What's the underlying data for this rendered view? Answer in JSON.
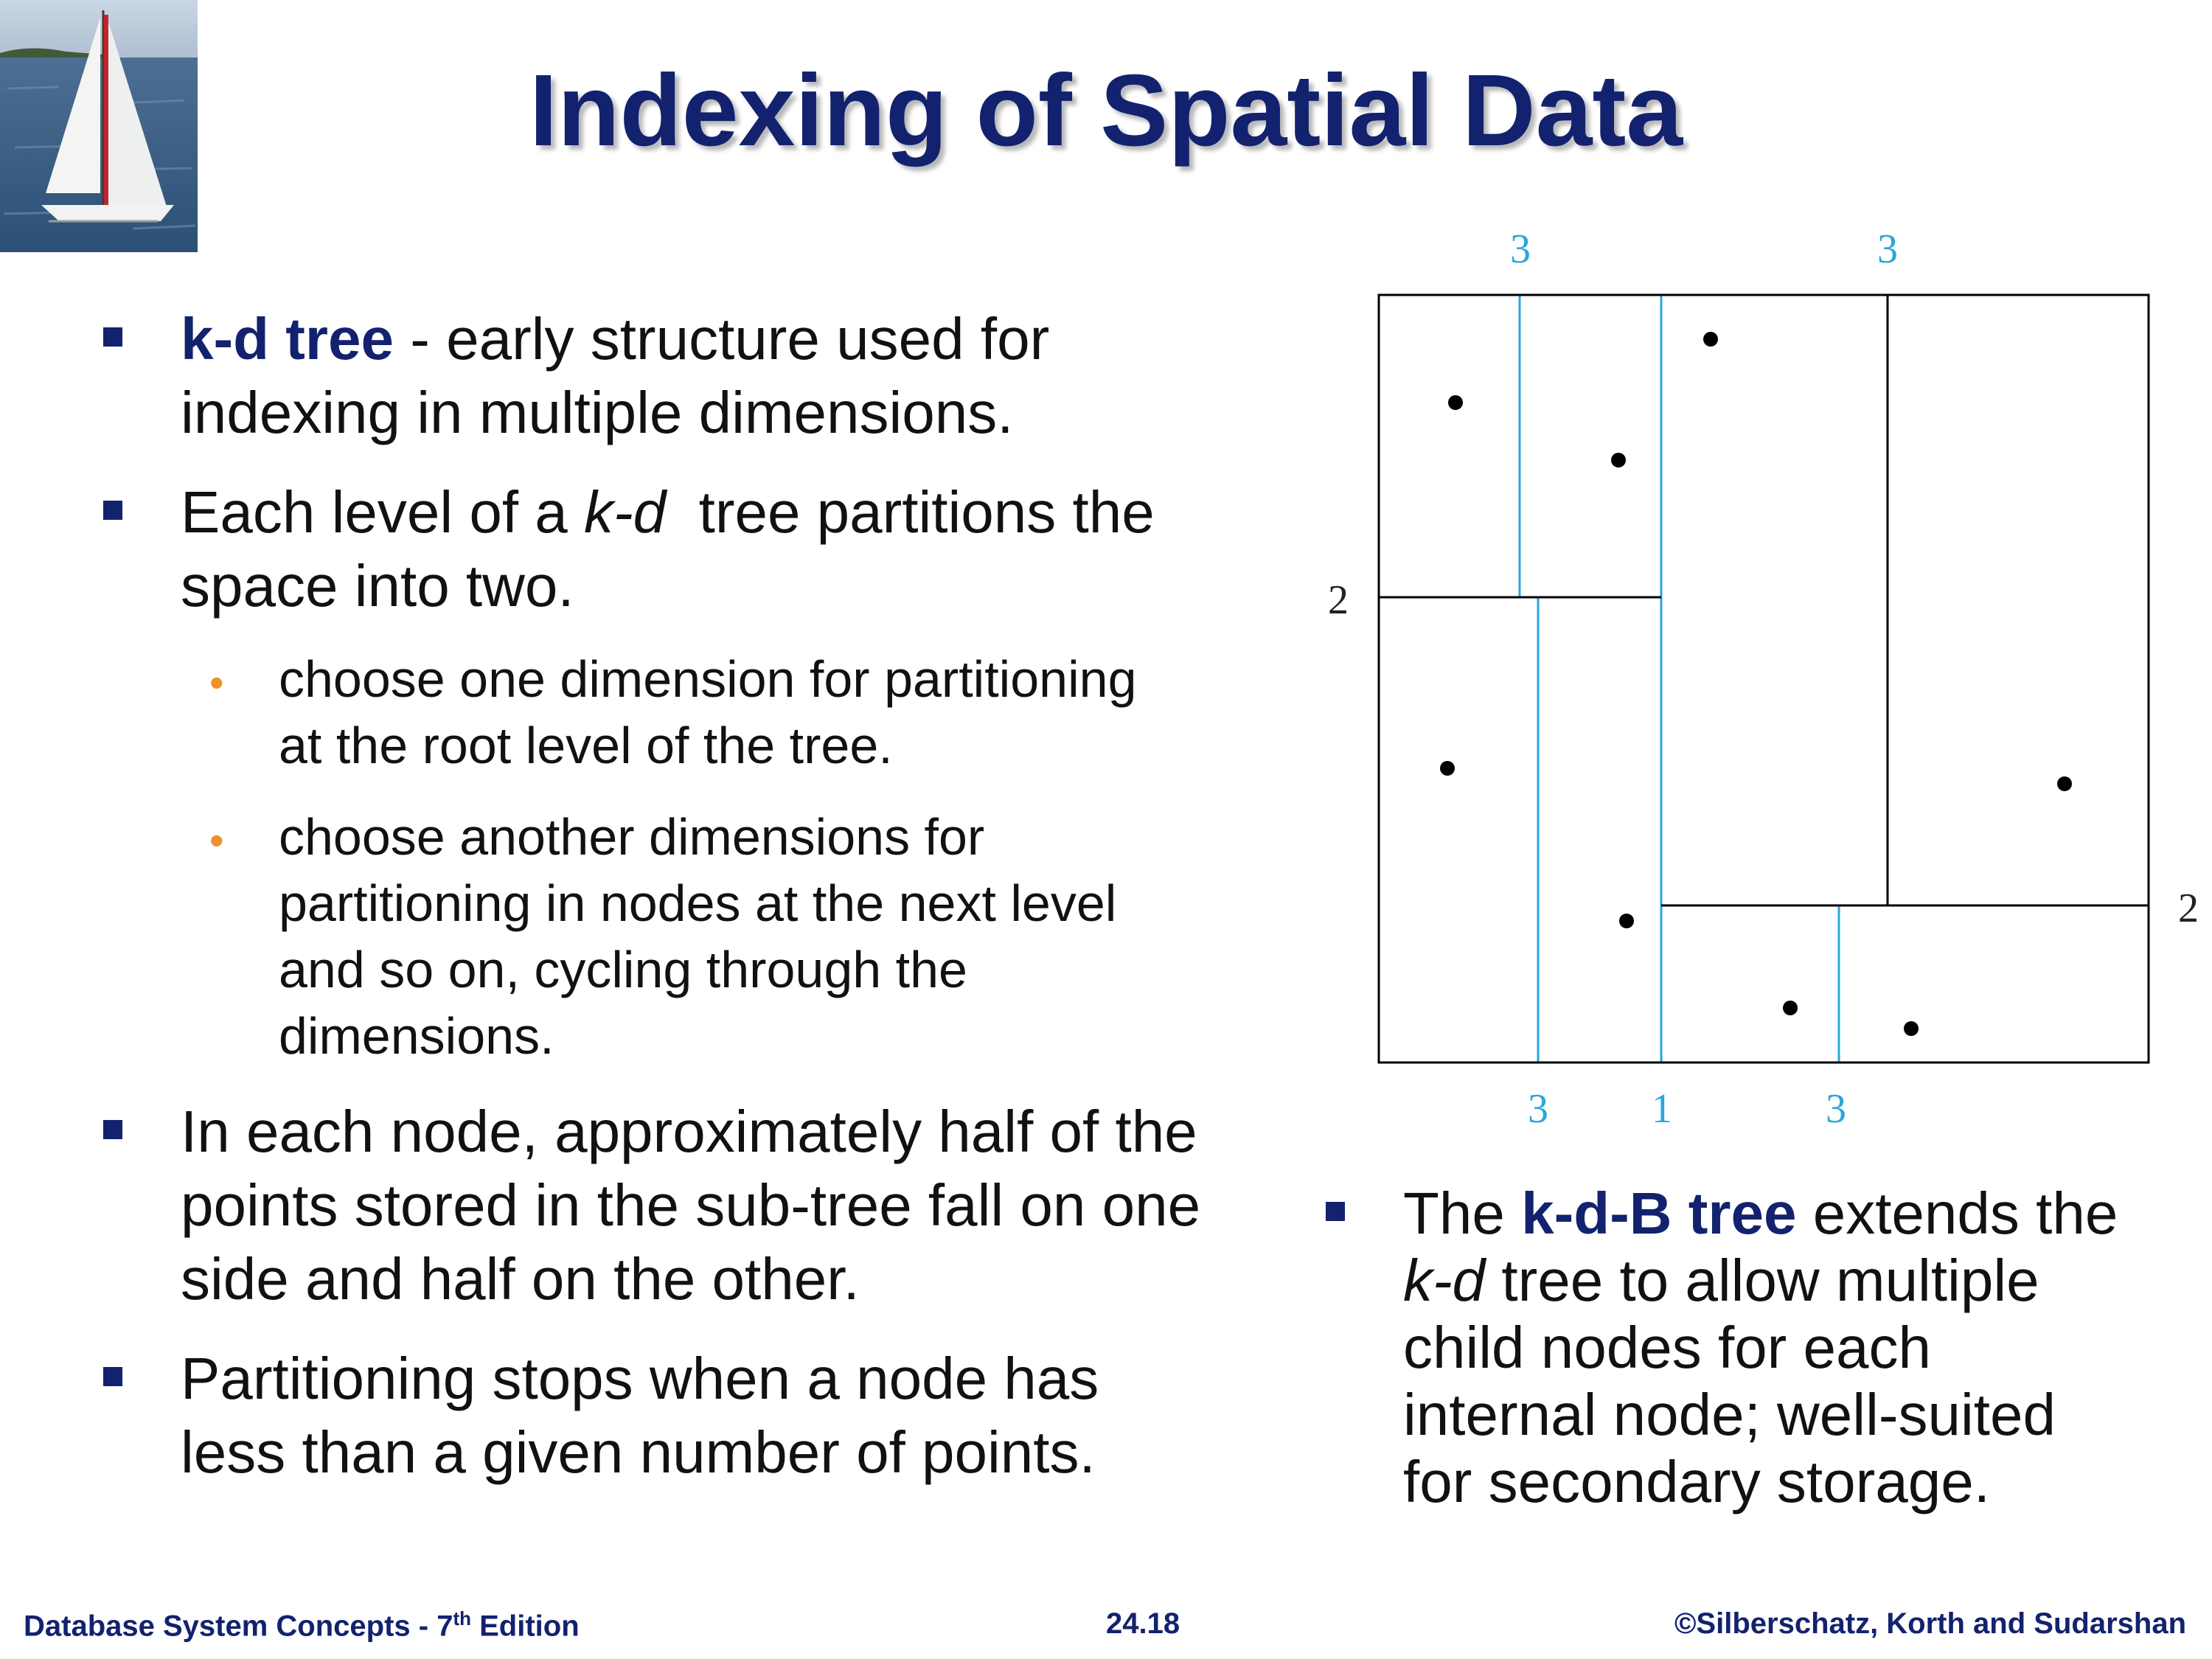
{
  "slide": {
    "title": "Indexing of Spatial Data"
  },
  "bullets": {
    "b1_term": "k-d tree",
    "b1_rest": " - early structure used for",
    "b1_line2": "indexing in multiple dimensions.",
    "b2_pre": "Each level of a ",
    "b2_em": "k-d",
    "b2_post": "  tree partitions the",
    "b2_line2": "space into two.",
    "s1_line1": "choose one dimension for partitioning",
    "s1_line2": "at the root level of the tree.",
    "s2_line1": "choose another dimensions for",
    "s2_line2": "partitioning in nodes at the next level",
    "s2_line3": "and so on, cycling through the",
    "s2_line4": "dimensions.",
    "b3_line1": "In each node, approximately half of the",
    "b3_line2": "points stored in the sub-tree fall on one",
    "b3_line3": "side and half on the other.",
    "b4_line1": "Partitioning stops when a node has",
    "b4_line2": "less than a given number of points.",
    "b5_pre": "The ",
    "b5_term": "k-d-B tree",
    "b5_post": " extends the",
    "b5_em": "k-d",
    "b5_line2_rest": " tree to allow multiple",
    "b5_line3": "child nodes for each",
    "b5_line4": "internal node; well-suited",
    "b5_line5": "for secondary storage."
  },
  "diagram": {
    "labels": {
      "top_left": "3",
      "top_right": "3",
      "left": "2",
      "right": "2",
      "bottom_left": "3",
      "bottom_mid": "1",
      "bottom_right": "3"
    },
    "colors": {
      "black_line": "#000000",
      "blue_line": "#29a6dc",
      "label_black": "#222222",
      "label_blue": "#29a6dc"
    }
  },
  "footer": {
    "left_pre": "Database System Concepts - 7",
    "left_sup": "th",
    "left_post": " Edition",
    "center": "24.18",
    "right": "©Silberschatz, Korth and Sudarshan"
  },
  "colors": {
    "title": "#13226e",
    "bullet_marker": "#13226e",
    "sub_bullet": "#f0902a"
  }
}
